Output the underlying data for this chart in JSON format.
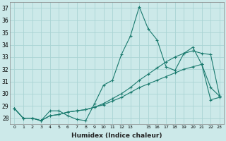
{
  "title": "",
  "xlabel": "Humidex (Indice chaleur)",
  "ylabel": "",
  "background_color": "#cce9e9",
  "grid_color": "#aad4d4",
  "line_color": "#1a7a6e",
  "xlim": [
    -0.5,
    23.5
  ],
  "ylim": [
    27.5,
    37.5
  ],
  "xticks": [
    0,
    1,
    2,
    3,
    4,
    5,
    6,
    7,
    8,
    9,
    10,
    11,
    12,
    13,
    15,
    16,
    17,
    18,
    19,
    20,
    21,
    22,
    23
  ],
  "yticks": [
    28,
    29,
    30,
    31,
    32,
    33,
    34,
    35,
    36,
    37
  ],
  "series1_x": [
    0,
    1,
    2,
    3,
    4,
    5,
    6,
    7,
    8,
    9,
    10,
    11,
    12,
    13,
    14,
    15,
    16,
    17,
    18,
    19,
    20,
    21,
    22,
    23
  ],
  "series1_y": [
    28.8,
    28.0,
    28.0,
    27.8,
    28.6,
    28.6,
    28.2,
    27.9,
    27.8,
    29.2,
    30.7,
    31.1,
    33.2,
    34.7,
    37.1,
    35.3,
    34.4,
    32.2,
    31.9,
    33.3,
    33.8,
    32.4,
    30.5,
    29.8
  ],
  "series2_x": [
    0,
    1,
    2,
    3,
    4,
    5,
    6,
    7,
    8,
    9,
    10,
    11,
    12,
    13,
    14,
    15,
    16,
    17,
    18,
    19,
    20,
    21,
    22,
    23
  ],
  "series2_y": [
    28.8,
    28.0,
    28.0,
    27.8,
    28.2,
    28.3,
    28.5,
    28.6,
    28.7,
    28.9,
    29.2,
    29.6,
    30.0,
    30.5,
    31.1,
    31.6,
    32.1,
    32.6,
    33.0,
    33.3,
    33.5,
    33.3,
    33.2,
    29.8
  ],
  "series3_x": [
    0,
    1,
    2,
    3,
    4,
    5,
    6,
    7,
    8,
    9,
    10,
    11,
    12,
    13,
    14,
    15,
    16,
    17,
    18,
    19,
    20,
    21,
    22,
    23
  ],
  "series3_y": [
    28.8,
    28.0,
    28.0,
    27.8,
    28.2,
    28.3,
    28.5,
    28.6,
    28.7,
    28.9,
    29.1,
    29.4,
    29.7,
    30.1,
    30.5,
    30.8,
    31.1,
    31.4,
    31.7,
    32.0,
    32.2,
    32.4,
    29.5,
    29.7
  ]
}
